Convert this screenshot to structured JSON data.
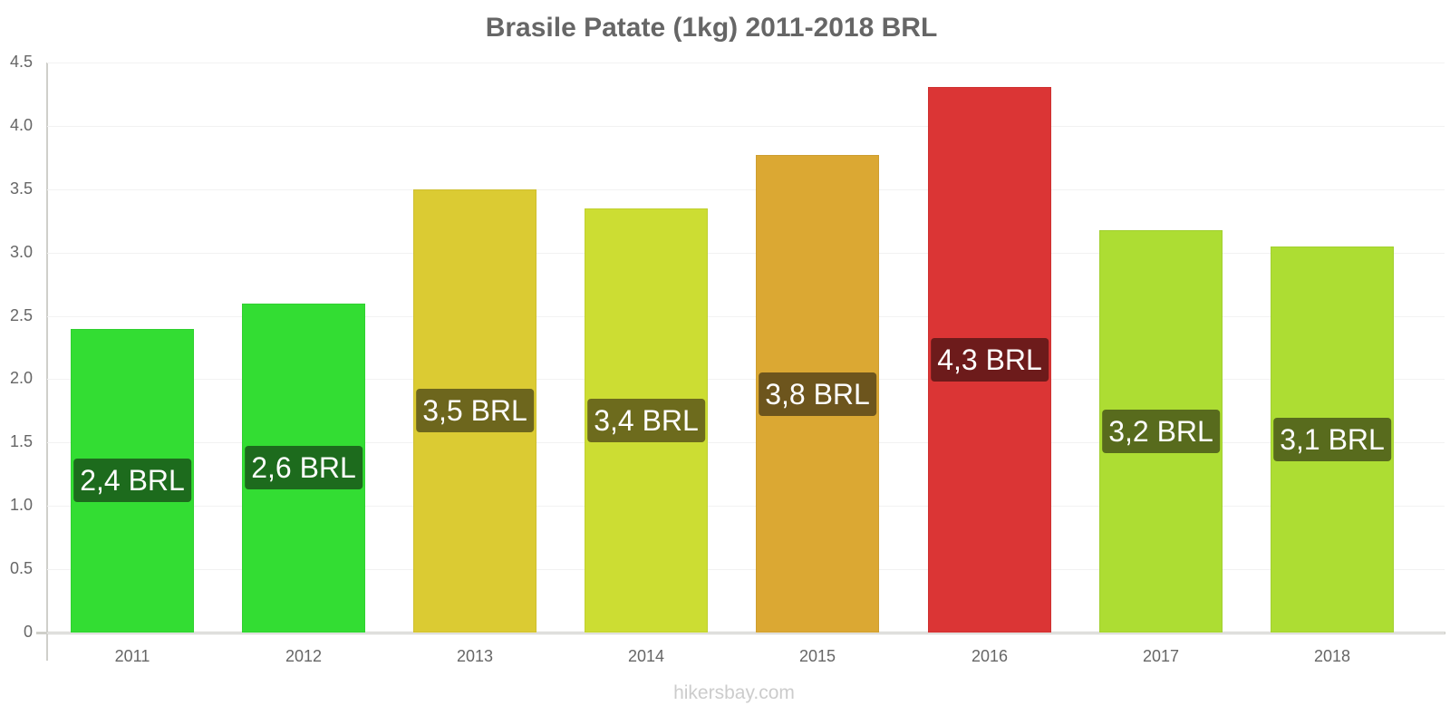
{
  "chart_data": {
    "type": "bar",
    "title": "Brasile Patate (1kg) 2011-2018 BRL",
    "xlabel": "",
    "ylabel": "",
    "ylim": [
      0,
      4.5
    ],
    "yticks": [
      "0",
      "0.5",
      "1.0",
      "1.5",
      "2.0",
      "2.5",
      "3.0",
      "3.5",
      "4.0",
      "4.5"
    ],
    "grid": true,
    "legend": null,
    "categories": [
      "2011",
      "2012",
      "2013",
      "2014",
      "2015",
      "2016",
      "2017",
      "2018"
    ],
    "values": [
      2.4,
      2.6,
      3.5,
      3.35,
      3.77,
      4.31,
      3.18,
      3.05
    ],
    "data_labels": [
      "2,4 BRL",
      "2,6 BRL",
      "3,5 BRL",
      "3,4 BRL",
      "3,8 BRL",
      "4,3 BRL",
      "3,2 BRL",
      "3,1 BRL"
    ],
    "bar_colors": [
      "#33dd33",
      "#33dd33",
      "#dbcb33",
      "#ccdd33",
      "#dba833",
      "#db3535",
      "#addd33",
      "#addd33"
    ],
    "label_colors": [
      "#1d6b1d",
      "#1d6b1d",
      "#6d661d",
      "#6d6b1d",
      "#6d551d",
      "#6d1b1b",
      "#586b1d",
      "#586b1d"
    ]
  },
  "watermark": "hikersbay.com"
}
